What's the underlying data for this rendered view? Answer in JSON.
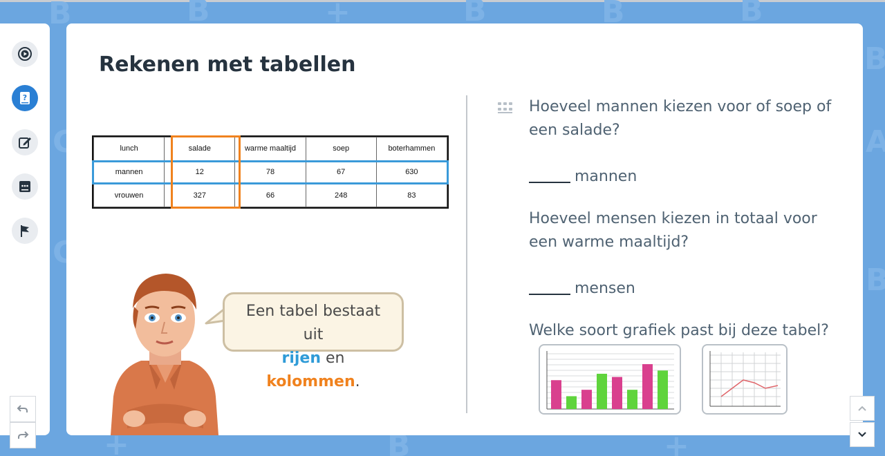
{
  "rail": {
    "items": [
      {
        "icon": "play-circle-icon"
      },
      {
        "icon": "question-book-icon",
        "active": true
      },
      {
        "icon": "edit-icon"
      },
      {
        "icon": "chat-icon"
      },
      {
        "icon": "flag-icon"
      }
    ],
    "undo_icon": "undo-icon",
    "redo_icon": "redo-icon"
  },
  "page": {
    "title": "Rekenen met tabellen"
  },
  "table": {
    "headers": [
      "lunch",
      "salade",
      "warme maaltijd",
      "soep",
      "boterhammen"
    ],
    "rows": [
      [
        "mannen",
        "12",
        "78",
        "67",
        "630"
      ],
      [
        "vrouwen",
        "327",
        "66",
        "248",
        "83"
      ]
    ],
    "highlight_row_color": "#3a9ad9",
    "highlight_col_color": "#f0821e"
  },
  "bubble": {
    "line1": "Een tabel bestaat uit",
    "word_rows": "rijen",
    "word_and": "en",
    "word_cols": "kolommen",
    "period": "."
  },
  "questions": [
    {
      "text": "Hoeveel mannen kiezen voor of soep of een salade?",
      "answer_unit": "mannen"
    },
    {
      "text": "Hoeveel mensen kiezen in totaal voor een warme maaltijd?",
      "answer_unit": "mensen"
    },
    {
      "text": "Welke soort grafiek past bij deze tabel?"
    }
  ],
  "chart_options": [
    {
      "icon": "bar-chart-icon",
      "bar_values": [
        36,
        16,
        24,
        44,
        40,
        24,
        56,
        48
      ],
      "bar_colors": [
        "#d9408e",
        "#5fd43c",
        "#d9408e",
        "#5fd43c",
        "#d9408e",
        "#5fd43c",
        "#d9408e",
        "#5fd43c"
      ]
    },
    {
      "icon": "line-chart-icon"
    }
  ],
  "nav": {
    "up_icon": "chevron-up-icon",
    "down_icon": "chevron-down-icon"
  },
  "colors": {
    "background": "#6ba6e0",
    "accent": "#2a7fd4"
  }
}
